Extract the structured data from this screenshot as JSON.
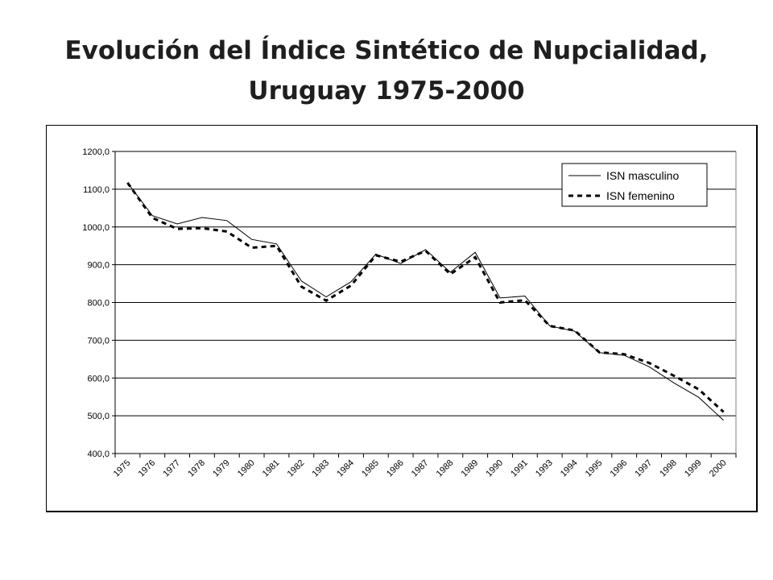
{
  "slide": {
    "title_line1": "Evolución del Índice Sintético de Nupcialidad,",
    "title_line2": "Uruguay 1975-2000"
  },
  "chart_data": {
    "type": "line",
    "title": "",
    "xlabel": "",
    "ylabel": "",
    "ylim": [
      400,
      1200
    ],
    "y_ticks": [
      "400,0",
      "500,0",
      "600,0",
      "700,0",
      "800,0",
      "900,0",
      "1000,0",
      "1100,0",
      "1200,0"
    ],
    "categories": [
      "1975",
      "1976",
      "1977",
      "1978",
      "1979",
      "1980",
      "1981",
      "1982",
      "1983",
      "1984",
      "1985",
      "1986",
      "1987",
      "1988",
      "1989",
      "1990",
      "1991",
      "1993",
      "1994",
      "1995",
      "1996",
      "1997",
      "1998",
      "1999",
      "2000"
    ],
    "grid": "horizontal",
    "legend_position": "top-right",
    "series": [
      {
        "name": "ISN masculino",
        "style": "solid",
        "color": "#000000",
        "values": [
          1117,
          1030,
          1008,
          1025,
          1017,
          967,
          955,
          857,
          815,
          855,
          928,
          903,
          940,
          880,
          933,
          812,
          817,
          738,
          724,
          667,
          660,
          630,
          587,
          549,
          488
        ]
      },
      {
        "name": "ISN femenino",
        "style": "dashed",
        "color": "#000000",
        "values": [
          1117,
          1024,
          995,
          997,
          988,
          945,
          950,
          842,
          805,
          845,
          925,
          908,
          937,
          875,
          920,
          800,
          806,
          738,
          726,
          668,
          663,
          640,
          606,
          570,
          510
        ]
      }
    ]
  }
}
